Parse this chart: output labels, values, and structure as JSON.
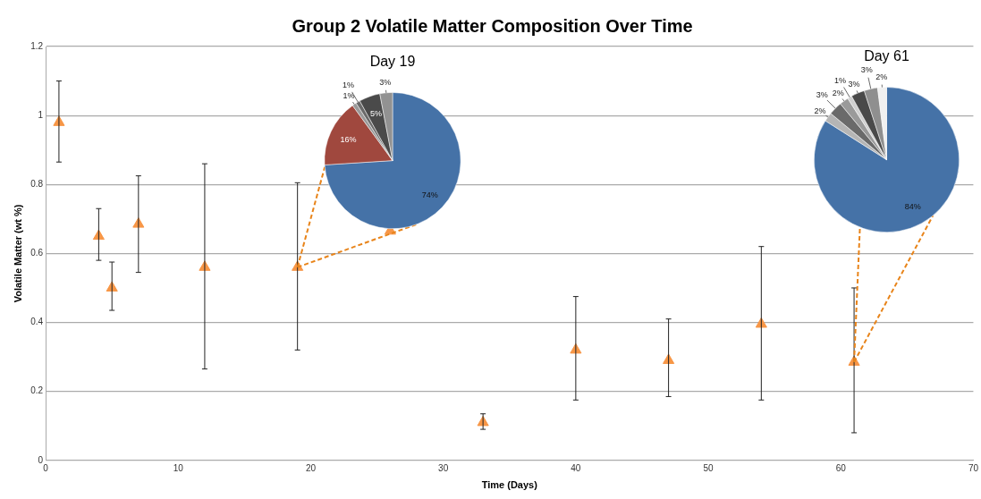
{
  "chart_data": [
    {
      "type": "scatter",
      "title": "Group 2 Volatile Matter Composition Over Time",
      "xlabel": "Time (Days)",
      "ylabel": "Volatile Matter (wt %)",
      "x": [
        1,
        4,
        5,
        7,
        12,
        19,
        26,
        33,
        40,
        47,
        54,
        61
      ],
      "values": [
        0.98,
        0.65,
        0.5,
        0.685,
        0.56,
        0.56,
        0.665,
        0.11,
        0.32,
        0.29,
        0.395,
        0.285
      ],
      "errors": [
        [
          0.865,
          1.1
        ],
        [
          0.58,
          0.73
        ],
        [
          0.435,
          0.575
        ],
        [
          0.545,
          0.825
        ],
        [
          0.265,
          0.86
        ],
        [
          0.32,
          0.805
        ],
        null,
        [
          0.09,
          0.135
        ],
        [
          0.175,
          0.475
        ],
        [
          0.185,
          0.41
        ],
        [
          0.175,
          0.62
        ],
        [
          0.08,
          0.5
        ]
      ],
      "color": "#f79646",
      "marker": "triangle",
      "xlim": [
        0,
        70
      ],
      "xticks": [
        0,
        10,
        20,
        30,
        40,
        50,
        60,
        70
      ],
      "ylim": [
        0,
        1.2
      ],
      "yticks": [
        0,
        0.2,
        0.4,
        0.6,
        0.8,
        1,
        1.2
      ],
      "grid": "y"
    },
    {
      "type": "pie",
      "title": "Day 19",
      "categories": [
        null,
        null,
        null,
        null,
        null,
        null
      ],
      "values": [
        74,
        16,
        1,
        1,
        5,
        3
      ],
      "colors": [
        "#4572a7",
        "#a0483e",
        "#9a9a9a",
        "#6a6a6a",
        "#4a4a4a",
        "#929292"
      ],
      "value_labels": [
        "74%",
        "16%",
        "1%",
        "1%",
        "5%",
        "3%"
      ]
    },
    {
      "type": "pie",
      "title": "Day 61",
      "categories": [
        null,
        null,
        null,
        null,
        null,
        null,
        null,
        null
      ],
      "values": [
        84,
        2,
        3,
        2,
        1,
        3,
        3,
        2
      ],
      "colors": [
        "#4572a7",
        "#b5b5b5",
        "#6a6a6a",
        "#9a9a9a",
        "#d0d0d0",
        "#4a4a4a",
        "#8f8f8f",
        "#f0f0f0"
      ],
      "value_labels": [
        "84%",
        "2%",
        "3%",
        "2%",
        "1%",
        "3%",
        "3%",
        "2%"
      ]
    }
  ]
}
